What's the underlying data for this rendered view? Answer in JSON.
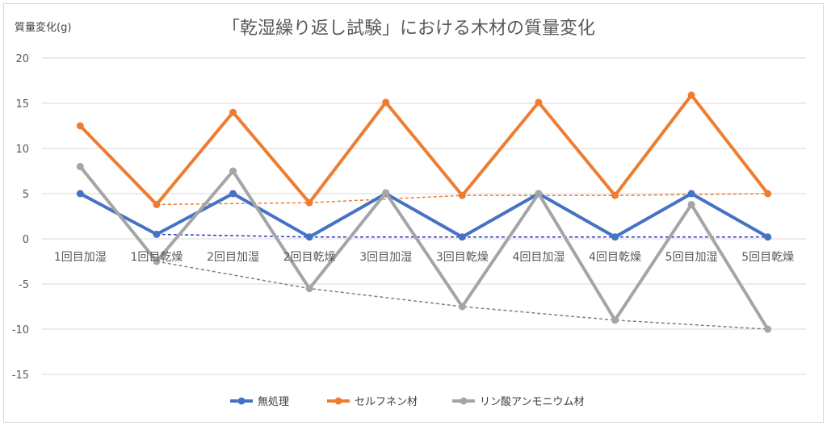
{
  "chart_data": {
    "type": "line",
    "title": "「乾湿繰り返し試験」における木材の質量変化",
    "ylabel": "質量変化(g)",
    "xlabel": "",
    "ylim": [
      -15,
      20
    ],
    "yticks": [
      -15,
      -10,
      -5,
      0,
      5,
      10,
      15,
      20
    ],
    "grid": true,
    "legend_position": "bottom",
    "categories": [
      "1回目加湿",
      "1回目乾燥",
      "2回目加湿",
      "2回目乾燥",
      "3回目加湿",
      "3回目乾燥",
      "4回目加湿",
      "4回目乾燥",
      "5回目加湿",
      "5回目乾燥"
    ],
    "series": [
      {
        "name": "無処理",
        "color": "#4472c4",
        "trend_color": "#3333cc",
        "values": [
          5,
          0.5,
          5,
          0.2,
          5,
          0.2,
          5,
          0.2,
          5,
          0.2
        ]
      },
      {
        "name": "セルフネン材",
        "color": "#ed7d31",
        "trend_color": "#ed7d31",
        "values": [
          12.5,
          3.8,
          14,
          4,
          15.1,
          4.8,
          15.1,
          4.8,
          15.9,
          5
        ]
      },
      {
        "name": "リン酸アンモニウム材",
        "color": "#a5a5a5",
        "trend_color": "#808080",
        "values": [
          8,
          -2.5,
          7.5,
          -5.5,
          5.1,
          -7.5,
          5,
          -9,
          3.8,
          -10
        ]
      }
    ],
    "annotations": [
      "Dashed lines connect the dry-phase (乾燥) values of each series"
    ]
  }
}
